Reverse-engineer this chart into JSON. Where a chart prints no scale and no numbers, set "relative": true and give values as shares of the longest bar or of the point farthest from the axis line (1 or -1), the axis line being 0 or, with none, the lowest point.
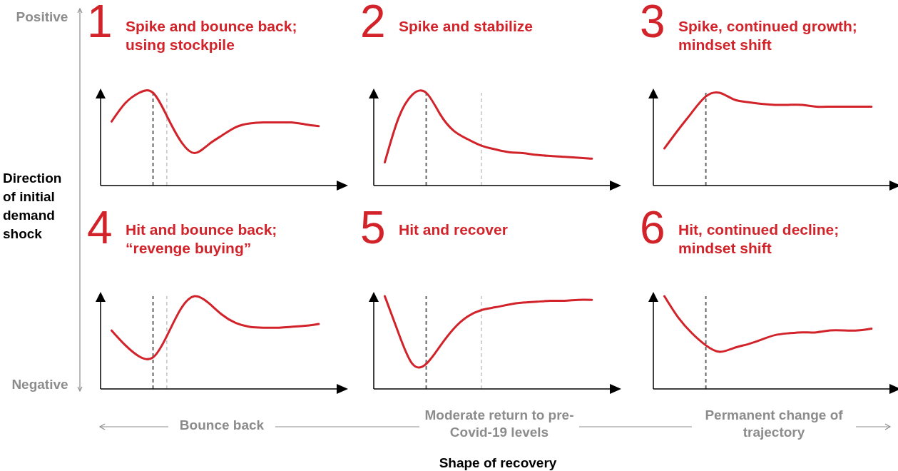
{
  "chart_data": [
    {
      "type": "line",
      "title": "1",
      "subtitle": "Spike and bounce back; using stockpile",
      "relative": true,
      "color": "#d2232a",
      "categories": [
        null,
        null,
        null,
        null,
        null,
        null,
        null,
        null,
        null,
        null,
        null,
        null,
        null,
        null,
        null,
        null
      ],
      "values": [
        0.69,
        0.89,
        1,
        1,
        0.75,
        0.48,
        0.35,
        0.44,
        0.54,
        0.63,
        0.67,
        0.68,
        0.68,
        0.68,
        0.66,
        0.64
      ]
    },
    {
      "type": "line",
      "title": "2",
      "subtitle": "Spike and stabilize",
      "relative": true,
      "color": "#d2232a",
      "categories": [
        null,
        null,
        null,
        null,
        null,
        null,
        null,
        null,
        null,
        null,
        null,
        null,
        null,
        null,
        null,
        null
      ],
      "values": [
        0.25,
        0.73,
        0.98,
        1,
        0.77,
        0.59,
        0.5,
        0.43,
        0.39,
        0.36,
        0.35,
        0.33,
        0.32,
        0.31,
        0.3,
        0.29
      ]
    },
    {
      "type": "line",
      "title": "3",
      "subtitle": "Spike, continued growth; mindset shift",
      "relative": true,
      "color": "#d2232a",
      "categories": [
        null,
        null,
        null,
        null,
        null,
        null,
        null,
        null,
        null,
        null,
        null,
        null,
        null,
        null,
        null,
        null
      ],
      "values": [
        0.4,
        0.6,
        0.79,
        0.96,
        1,
        0.93,
        0.9,
        0.88,
        0.87,
        0.87,
        0.87,
        0.85,
        0.85,
        0.85,
        0.85,
        0.85
      ]
    },
    {
      "type": "line",
      "title": "4",
      "subtitle": "Hit and bounce back; “revenge buying”",
      "relative": true,
      "color": "#d2232a",
      "categories": [
        null,
        null,
        null,
        null,
        null,
        null,
        null,
        null,
        null,
        null,
        null,
        null,
        null,
        null,
        null,
        null
      ],
      "values": [
        0.63,
        0.47,
        0.35,
        0.34,
        0.57,
        0.86,
        1,
        0.93,
        0.8,
        0.71,
        0.67,
        0.66,
        0.66,
        0.67,
        0.68,
        0.7
      ]
    },
    {
      "type": "line",
      "title": "5",
      "subtitle": "Hit and recover",
      "relative": true,
      "color": "#d2232a",
      "categories": [
        null,
        null,
        null,
        null,
        null,
        null,
        null,
        null,
        null,
        null,
        null,
        null,
        null,
        null,
        null,
        null
      ],
      "values": [
        1,
        0.6,
        0.27,
        0.27,
        0.46,
        0.65,
        0.78,
        0.85,
        0.88,
        0.91,
        0.93,
        0.94,
        0.95,
        0.95,
        0.96,
        0.96
      ]
    },
    {
      "type": "line",
      "title": "6",
      "subtitle": "Hit, continued decline; mindset shift",
      "relative": true,
      "color": "#d2232a",
      "categories": [
        null,
        null,
        null,
        null,
        null,
        null,
        null,
        null,
        null,
        null,
        null,
        null,
        null,
        null,
        null,
        null
      ],
      "values": [
        1,
        0.77,
        0.6,
        0.47,
        0.4,
        0.44,
        0.48,
        0.53,
        0.58,
        0.6,
        0.61,
        0.61,
        0.63,
        0.63,
        0.63,
        0.65
      ]
    },
    {
      "type": "other",
      "ylabel": "Direction of initial demand shock",
      "xlabel": "Shape of recovery",
      "annotations": [
        "Positive",
        "Negative",
        "Bounce back",
        "Moderate return to pre-Covid-19 levels",
        "Permanent change of trajectory"
      ]
    }
  ]
}
